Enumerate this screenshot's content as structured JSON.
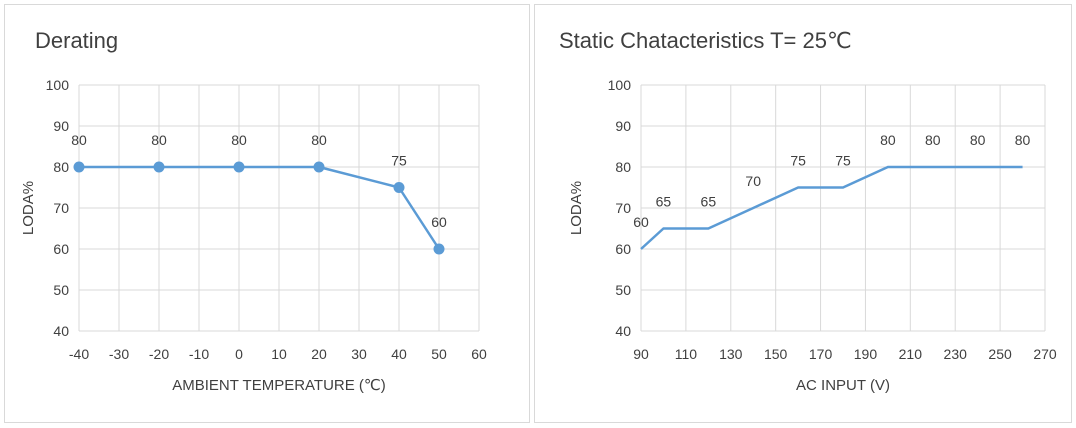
{
  "colors": {
    "series": "#5b9bd5",
    "grid": "#d9d9d9",
    "text": "#404040"
  },
  "chart_data": [
    {
      "type": "line",
      "title": "Derating",
      "xlabel": "AMBIENT TEMPERATURE (℃)",
      "ylabel": "LODA%",
      "xlim": [
        -40,
        60
      ],
      "xticks": [
        -40,
        -30,
        -20,
        -10,
        0,
        10,
        20,
        30,
        40,
        50,
        60
      ],
      "xtick_labels": [
        "-40",
        "-30",
        "-20",
        "-10",
        "0",
        "10",
        "20",
        "30",
        "40",
        "50",
        "60"
      ],
      "ylim": [
        40,
        100
      ],
      "yticks": [
        40,
        50,
        60,
        70,
        80,
        90,
        100
      ],
      "ytick_labels": [
        "40",
        "50",
        "60",
        "70",
        "80",
        "90",
        "100"
      ],
      "markers": true,
      "grid": true,
      "series": [
        {
          "x": [
            -40,
            -20,
            0,
            20,
            40,
            50
          ],
          "y": [
            80,
            80,
            80,
            80,
            75,
            60
          ],
          "labels": [
            "80",
            "80",
            "80",
            "80",
            "75",
            "60"
          ]
        }
      ]
    },
    {
      "type": "line",
      "title": "Static Chatacteristics T= 25℃",
      "xlabel": "AC INPUT (V)",
      "ylabel": "LODA%",
      "xlim": [
        90,
        270
      ],
      "xticks": [
        90,
        110,
        130,
        150,
        170,
        190,
        210,
        230,
        250,
        270
      ],
      "xtick_labels": [
        "90",
        "110",
        "130",
        "150",
        "170",
        "190",
        "210",
        "230",
        "250",
        "270"
      ],
      "ylim": [
        40,
        100
      ],
      "yticks": [
        40,
        50,
        60,
        70,
        80,
        90,
        100
      ],
      "ytick_labels": [
        "40",
        "50",
        "60",
        "70",
        "80",
        "90",
        "100"
      ],
      "markers": false,
      "grid": true,
      "series": [
        {
          "x": [
            90,
            100,
            120,
            140,
            160,
            180,
            200,
            220,
            240,
            260
          ],
          "y": [
            60,
            65,
            65,
            70,
            75,
            75,
            80,
            80,
            80,
            80
          ],
          "labels": [
            "60",
            "65",
            "65",
            "70",
            "75",
            "75",
            "80",
            "80",
            "80",
            "80"
          ]
        }
      ]
    }
  ]
}
